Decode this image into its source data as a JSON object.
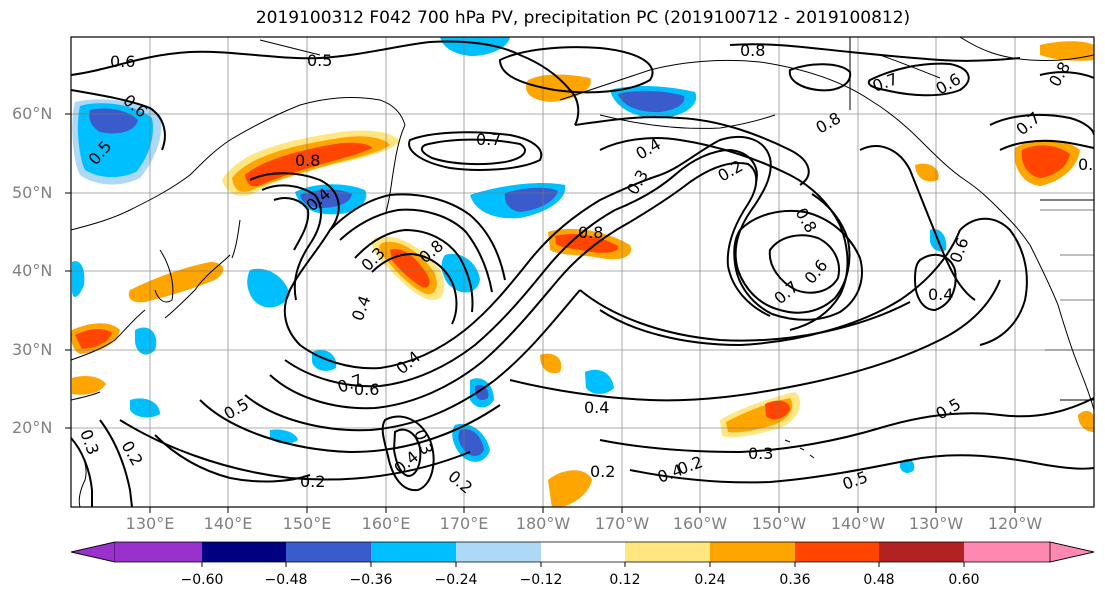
{
  "title": "2019100312 F042 700 hPa PV, precipitation PC (2019100712 - 2019100812)",
  "latitudes": [
    "20°N",
    "30°N",
    "40°N",
    "50°N",
    "60°N"
  ],
  "longitudes": [
    "130°E",
    "140°E",
    "150°E",
    "160°E",
    "170°E",
    "180°W",
    "170°W",
    "160°W",
    "150°W",
    "140°W",
    "130°W",
    "120°W"
  ],
  "contour_labels": [
    "0.6",
    "0.5",
    "0.6",
    "0.7",
    "0.8",
    "0.5",
    "0.4",
    "0.3",
    "0.8",
    "0.4",
    "0.8",
    "0.4",
    "0.7",
    "0.8",
    "0.2",
    "0.3",
    "0.8",
    "0.7",
    "0.6",
    "0.6",
    "0.4",
    "0.8",
    "0.7",
    "0.5",
    "0.4",
    "0.6",
    "0.4",
    "0.5",
    "0.2",
    "0.3",
    "0.3",
    "0.4",
    "0.2",
    "0.2",
    "0.2",
    "0.4",
    "0.3",
    "0.5",
    "0.2",
    "0.6",
    "0.7",
    "0.8",
    "0.8"
  ],
  "colorbar": {
    "ticks": [
      "−0.60",
      "−0.48",
      "−0.36",
      "−0.24",
      "−0.12",
      "0.12",
      "0.24",
      "0.36",
      "0.48",
      "0.60"
    ],
    "colors": {
      "below_min": "#9932cc",
      "bin_-0.60_-0.48": "#000080",
      "bin_-0.48_-0.36": "#3a5bcc",
      "bin_-0.36_-0.24": "#00bfff",
      "bin_-0.24_-0.12": "#add8f6",
      "bin_-0.12_0.12": "#ffffff",
      "bin_0.12_0.24": "#ffe680",
      "bin_0.24_0.36": "#ffa500",
      "bin_0.36_0.48": "#ff4500",
      "bin_0.48_0.60": "#b22222",
      "above_max": "#ff88b0"
    }
  }
}
